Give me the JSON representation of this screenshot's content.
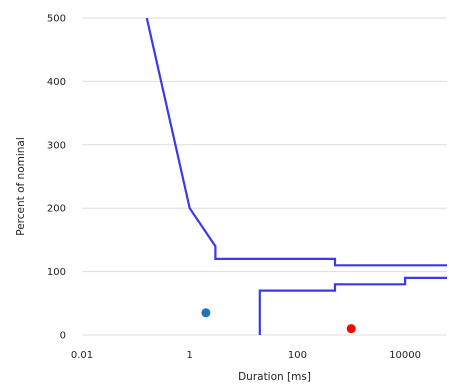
{
  "chart_data": {
    "type": "line",
    "title": "",
    "xlabel": "Duration [ms]",
    "ylabel": "Percent of nominal",
    "x_scale": "log",
    "xlim": [
      0.01,
      60000
    ],
    "ylim": [
      0,
      500
    ],
    "grid": "horizontal",
    "x_ticks": [
      {
        "value": 0.01,
        "label": "0.01"
      },
      {
        "value": 1,
        "label": "1"
      },
      {
        "value": 100,
        "label": "100"
      },
      {
        "value": 10000,
        "label": "10000"
      }
    ],
    "y_ticks": [
      {
        "value": 0,
        "label": "0"
      },
      {
        "value": 100,
        "label": "100"
      },
      {
        "value": 200,
        "label": "200"
      },
      {
        "value": 300,
        "label": "300"
      },
      {
        "value": 400,
        "label": "400"
      },
      {
        "value": 500,
        "label": "500"
      }
    ],
    "series": [
      {
        "color": "#3a3ae8",
        "x": [
          0.16,
          1,
          3,
          3,
          500,
          500,
          60000
        ],
        "y": [
          500,
          200,
          140,
          120,
          120,
          110,
          110
        ]
      },
      {
        "color": "#3a3ae8",
        "x": [
          20,
          20,
          500,
          500,
          10000,
          10000,
          60000
        ],
        "y": [
          0,
          70,
          70,
          80,
          80,
          90,
          90
        ]
      }
    ],
    "points": [
      {
        "x": 2,
        "y": 35,
        "color": "#1f77b4"
      },
      {
        "x": 1000,
        "y": 10,
        "color": "#ff0000"
      }
    ]
  }
}
